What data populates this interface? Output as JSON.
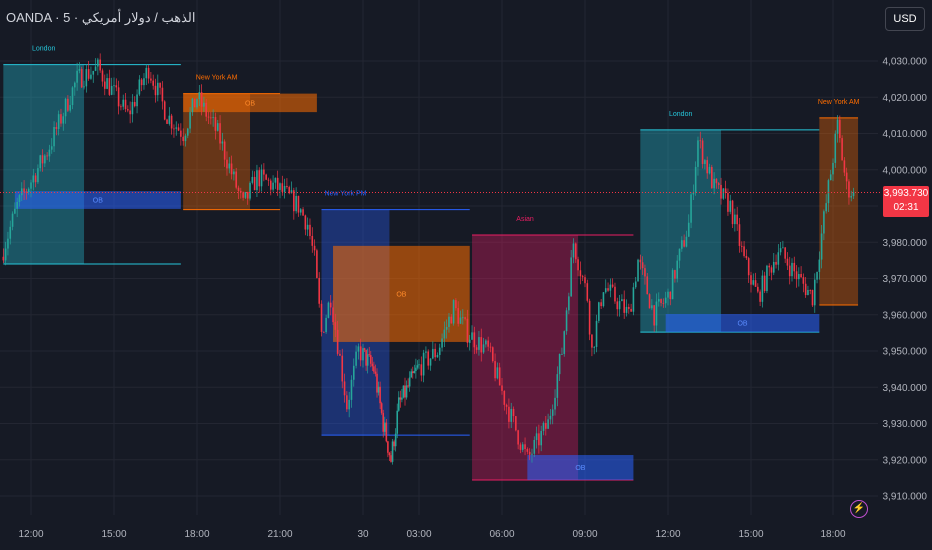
{
  "header": {
    "title": "OANDA · 5 · الذهب / دولار أمريكي",
    "currency_button": "USD"
  },
  "last_price": {
    "value": "3,993.730",
    "countdown": "02:31",
    "color": "#f23645"
  },
  "alert_icon": "lightning-icon",
  "colors": {
    "up": "#26a69a",
    "down": "#f23645",
    "background": "#161a25",
    "grid": "#232632"
  },
  "chart_data": {
    "type": "candlestick",
    "ylim": [
      3905,
      4035
    ],
    "y_ticks": [
      "3,910.000",
      "3,920.000",
      "3,930.000",
      "3,940.000",
      "3,950.000",
      "3,960.000",
      "3,970.000",
      "3,980.000",
      "3,990.000",
      "4,000.000",
      "4,010.000",
      "4,020.000",
      "4,030.000"
    ],
    "x_ticks": [
      {
        "t": "29 12:00",
        "label": "12:00"
      },
      {
        "t": "29 15:00",
        "label": "15:00"
      },
      {
        "t": "29 18:00",
        "label": "18:00"
      },
      {
        "t": "29 21:00",
        "label": "21:00"
      },
      {
        "t": "30 00:00",
        "label": "30"
      },
      {
        "t": "30 03:00",
        "label": "03:00"
      },
      {
        "t": "30 06:00",
        "label": "06:00"
      },
      {
        "t": "30 09:00",
        "label": "09:00"
      },
      {
        "t": "30 12:00",
        "label": "12:00"
      },
      {
        "t": "30 15:00",
        "label": "15:00"
      },
      {
        "t": "30 18:00",
        "label": "18:00"
      }
    ],
    "price_path": [
      [
        "29 11:00",
        3976
      ],
      [
        "29 11:35",
        3990
      ],
      [
        "29 12:40",
        4005
      ],
      [
        "29 13:45",
        4025
      ],
      [
        "29 14:30",
        4028
      ],
      [
        "29 15:35",
        4015
      ],
      [
        "29 16:20",
        4028
      ],
      [
        "29 17:00",
        4015
      ],
      [
        "29 17:35",
        4010
      ],
      [
        "29 18:05",
        4020
      ],
      [
        "29 18:50",
        4010
      ],
      [
        "29 19:45",
        3990
      ],
      [
        "29 20:15",
        3998
      ],
      [
        "29 21:00",
        3995
      ],
      [
        "29 21:45",
        3990
      ],
      [
        "29 22:05",
        3985
      ],
      [
        "29 22:20",
        3975
      ],
      [
        "29 22:35",
        3955
      ],
      [
        "29 22:55",
        3965
      ],
      [
        "29 23:30",
        3935
      ],
      [
        "29 23:55",
        3950
      ],
      [
        "30 00:40",
        3945
      ],
      [
        "30 01:10",
        3930
      ],
      [
        "30 01:35",
        3920
      ],
      [
        "30 02:00",
        3935
      ],
      [
        "30 03:00",
        3945
      ],
      [
        "30 03:45",
        3950
      ],
      [
        "30 04:20",
        3962
      ],
      [
        "30 04:50",
        3955
      ],
      [
        "30 05:35",
        3950
      ],
      [
        "30 06:15",
        3935
      ],
      [
        "30 07:00",
        3920
      ],
      [
        "30 07:45",
        3930
      ],
      [
        "30 08:15",
        3950
      ],
      [
        "30 08:40",
        3980
      ],
      [
        "30 09:10",
        3965
      ],
      [
        "30 09:20",
        3950
      ],
      [
        "30 09:45",
        3968
      ],
      [
        "30 10:40",
        3960
      ],
      [
        "30 11:00",
        3975
      ],
      [
        "30 11:35",
        3960
      ],
      [
        "30 12:05",
        3965
      ],
      [
        "30 12:50",
        3985
      ],
      [
        "30 13:10",
        4008
      ],
      [
        "30 13:45",
        3995
      ],
      [
        "30 14:20",
        3990
      ],
      [
        "30 14:50",
        3975
      ],
      [
        "30 15:20",
        3965
      ],
      [
        "30 16:05",
        3978
      ],
      [
        "30 16:50",
        3970
      ],
      [
        "30 17:20",
        3965
      ],
      [
        "30 17:55",
        3995
      ],
      [
        "30 18:15",
        4012
      ],
      [
        "30 18:35",
        3995
      ],
      [
        "30 18:50",
        3993.73
      ]
    ],
    "sessions": [
      {
        "label": "London",
        "start": "29 11:00",
        "end": "29 13:55",
        "high": 4029,
        "low": 3974,
        "line_end": "29 17:25",
        "color": "#26c6da",
        "ob": {
          "label": "OB",
          "start": "29 11:25",
          "end": "29 17:25",
          "top": 3994.1,
          "bottom": 3989.2,
          "color": "#2962ff"
        }
      },
      {
        "label": "New York AM",
        "start": "29 17:30",
        "end": "29 19:55",
        "high": 4021,
        "low": 3989,
        "line_end": "29 21:00",
        "color": "#ff6d00",
        "ob": {
          "label": "OB",
          "start": "29 17:30",
          "end": "29 22:20",
          "top": 4021,
          "bottom": 4015.9,
          "color": "#ff6d00"
        }
      },
      {
        "label": "New York PM",
        "start": "29 22:30",
        "end": "30 01:25",
        "high": 3989,
        "low": 3926.8,
        "line_end": "30 04:50",
        "color": "#2962ff",
        "ob": {
          "label": "OB",
          "start": "29 22:55",
          "end": "30 04:50",
          "top": 3979,
          "bottom": 3952.5,
          "color": "#ff6d00"
        }
      },
      {
        "label": "Asian",
        "start": "30 04:55",
        "end": "30 08:45",
        "high": 3982,
        "low": 3914.4,
        "line_end": "30 10:45",
        "color": "#e91e63",
        "ob": {
          "label": "OB",
          "start": "30 06:55",
          "end": "30 10:45",
          "top": 3921.3,
          "bottom": 3914.4,
          "color": "#2962ff"
        }
      },
      {
        "label": "London",
        "start": "30 11:00",
        "end": "30 13:55",
        "high": 4011,
        "low": 3955.2,
        "line_end": "30 17:30",
        "color": "#26c6da",
        "ob": {
          "label": "OB",
          "start": "30 11:55",
          "end": "30 17:30",
          "top": 3960.2,
          "bottom": 3955.2,
          "color": "#2962ff"
        }
      },
      {
        "label": "New York AM",
        "start": "30 17:30",
        "end": "30 18:55",
        "high": 4014.3,
        "low": 3962.7,
        "line_end": "30 18:55",
        "color": "#ff6d00"
      }
    ]
  }
}
